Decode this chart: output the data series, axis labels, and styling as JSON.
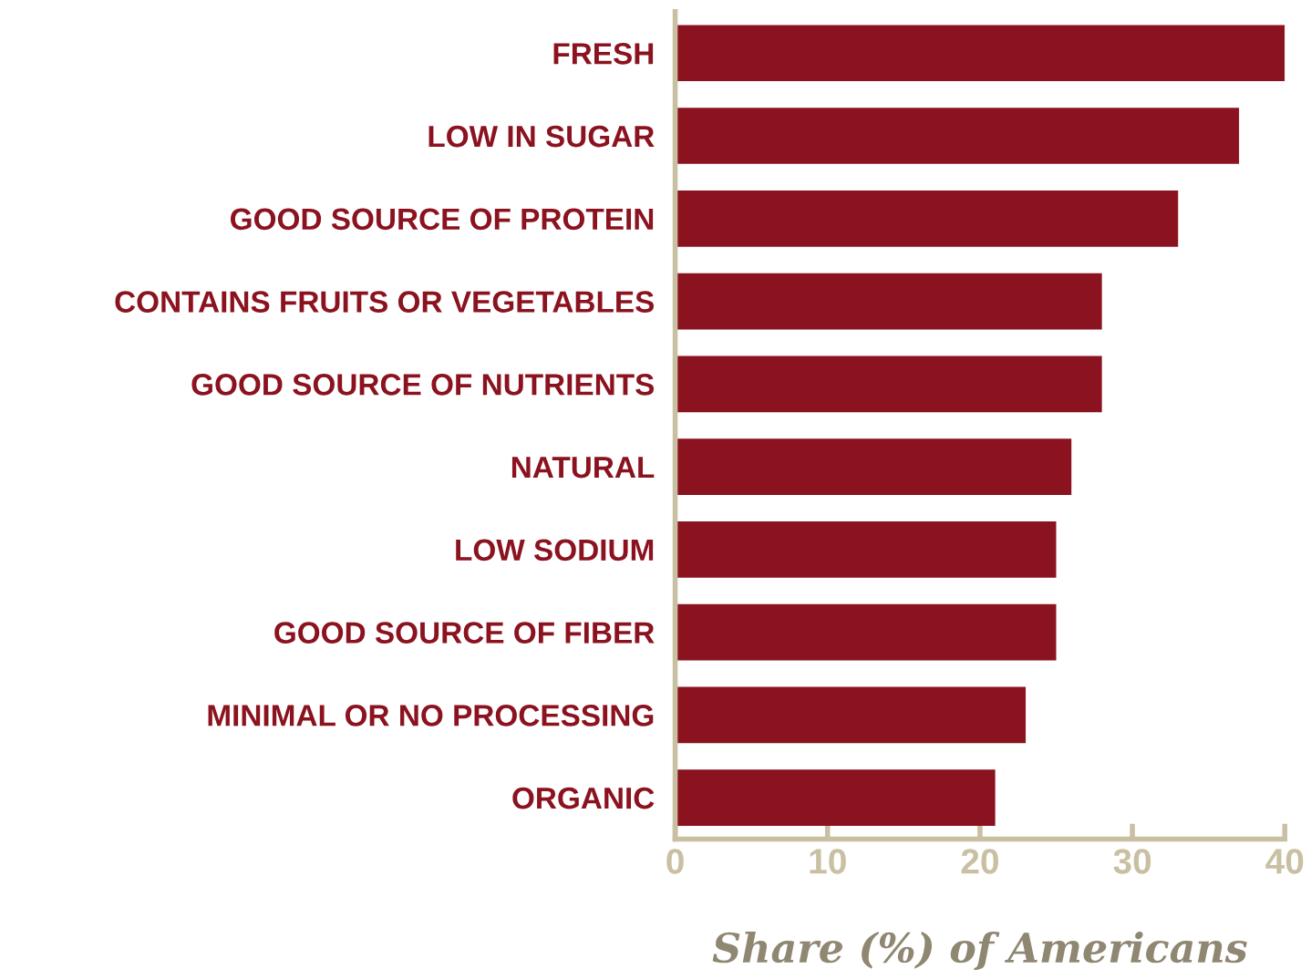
{
  "chart_data": {
    "type": "bar",
    "orientation": "horizontal",
    "xlabel": "Share (%) of Americans",
    "categories": [
      "FRESH",
      "LOW IN SUGAR",
      "GOOD SOURCE OF PROTEIN",
      "CONTAINS FRUITS OR VEGETABLES",
      "GOOD SOURCE OF NUTRIENTS",
      "NATURAL",
      "LOW SODIUM",
      "GOOD SOURCE OF FIBER",
      "MINIMAL OR NO PROCESSING",
      "ORGANIC"
    ],
    "values": [
      40,
      37,
      33,
      28,
      28,
      26,
      25,
      25,
      23,
      21
    ],
    "color": "#8b121f",
    "xlim": [
      0,
      40
    ],
    "xticks": [
      0,
      10,
      20,
      30,
      40
    ],
    "grid": false,
    "legend": false
  }
}
